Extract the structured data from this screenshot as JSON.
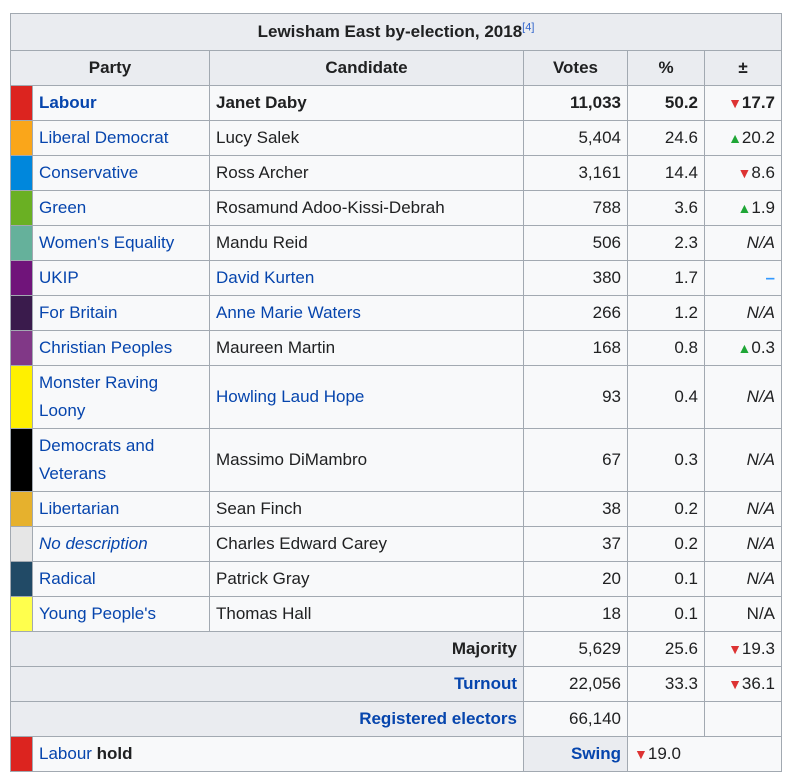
{
  "title": "Lewisham East by-election, 2018",
  "title_ref": "[4]",
  "headers": {
    "party": "Party",
    "candidate": "Candidate",
    "votes": "Votes",
    "pct": "%",
    "change": "±"
  },
  "rows": [
    {
      "color": "#dc241f",
      "party": "Labour",
      "candidate": "Janet Daby",
      "votes": "11,033",
      "pct": "50.2",
      "change": "17.7",
      "dir": "down",
      "bold": true,
      "party_link": true,
      "cand_link": false
    },
    {
      "color": "#faa61a",
      "party": "Liberal Democrat",
      "candidate": "Lucy Salek",
      "votes": "5,404",
      "pct": "24.6",
      "change": "20.2",
      "dir": "up",
      "party_link": true,
      "cand_link": false
    },
    {
      "color": "#0087dc",
      "party": "Conservative",
      "candidate": "Ross Archer",
      "votes": "3,161",
      "pct": "14.4",
      "change": "8.6",
      "dir": "down",
      "party_link": true,
      "cand_link": false
    },
    {
      "color": "#6ab023",
      "party": "Green",
      "candidate": "Rosamund Adoo-Kissi-Debrah",
      "votes": "788",
      "pct": "3.6",
      "change": "1.9",
      "dir": "up",
      "party_link": true,
      "cand_link": false
    },
    {
      "color": "#65b19b",
      "party": "Women's Equality",
      "candidate": "Mandu Reid",
      "votes": "506",
      "pct": "2.3",
      "change": "N/A",
      "dir": "na",
      "party_link": true,
      "cand_link": false
    },
    {
      "color": "#70147a",
      "party": "UKIP",
      "candidate": "David Kurten",
      "votes": "380",
      "pct": "1.7",
      "change": "–",
      "dir": "dash",
      "party_link": true,
      "cand_link": true
    },
    {
      "color": "#3a1b4c",
      "party": "For Britain",
      "candidate": "Anne Marie Waters",
      "votes": "266",
      "pct": "1.2",
      "change": "N/A",
      "dir": "na",
      "party_link": true,
      "cand_link": true
    },
    {
      "color": "#813887",
      "party": "Christian Peoples",
      "candidate": "Maureen Martin",
      "votes": "168",
      "pct": "0.8",
      "change": "0.3",
      "dir": "up",
      "party_link": true,
      "cand_link": false
    },
    {
      "color": "#fff000",
      "party": "Monster Raving Loony",
      "candidate": "Howling Laud Hope",
      "votes": "93",
      "pct": "0.4",
      "change": "N/A",
      "dir": "na",
      "party_link": true,
      "cand_link": true,
      "tall": true
    },
    {
      "color": "#000000",
      "party": "Democrats and Veterans",
      "candidate": "Massimo DiMambro",
      "votes": "67",
      "pct": "0.3",
      "change": "N/A",
      "dir": "na",
      "party_link": true,
      "cand_link": false,
      "tall": true
    },
    {
      "color": "#e6b12d",
      "party": "Libertarian",
      "candidate": "Sean Finch",
      "votes": "38",
      "pct": "0.2",
      "change": "N/A",
      "dir": "na",
      "party_link": true,
      "cand_link": false
    },
    {
      "color": "#e6e6e6",
      "party": "No description",
      "candidate": "Charles Edward Carey",
      "votes": "37",
      "pct": "0.2",
      "change": "N/A",
      "dir": "na",
      "party_link": true,
      "italic_party": true,
      "cand_link": false
    },
    {
      "color": "#214a66",
      "party": "Radical",
      "candidate": "Patrick Gray",
      "votes": "20",
      "pct": "0.1",
      "change": "N/A",
      "dir": "na",
      "party_link": true,
      "cand_link": false
    },
    {
      "color": "#ffff4d",
      "party": "Young People's",
      "candidate": "Thomas Hall",
      "votes": "18",
      "pct": "0.1",
      "change": "N/A",
      "dir": "plain",
      "party_link": true,
      "cand_link": false
    }
  ],
  "summary": {
    "majority": {
      "label": "Majority",
      "votes": "5,629",
      "pct": "25.6",
      "change": "19.3",
      "dir": "down"
    },
    "turnout": {
      "label": "Turnout",
      "votes": "22,056",
      "pct": "33.3",
      "change": "36.1",
      "dir": "down"
    },
    "registered": {
      "label": "Registered electors",
      "votes": "66,140"
    },
    "hold": {
      "color": "#dc241f",
      "party": "Labour",
      "suffix": " hold",
      "swing_label": "Swing",
      "swing_value": "19.0",
      "swing_dir": "down"
    }
  }
}
